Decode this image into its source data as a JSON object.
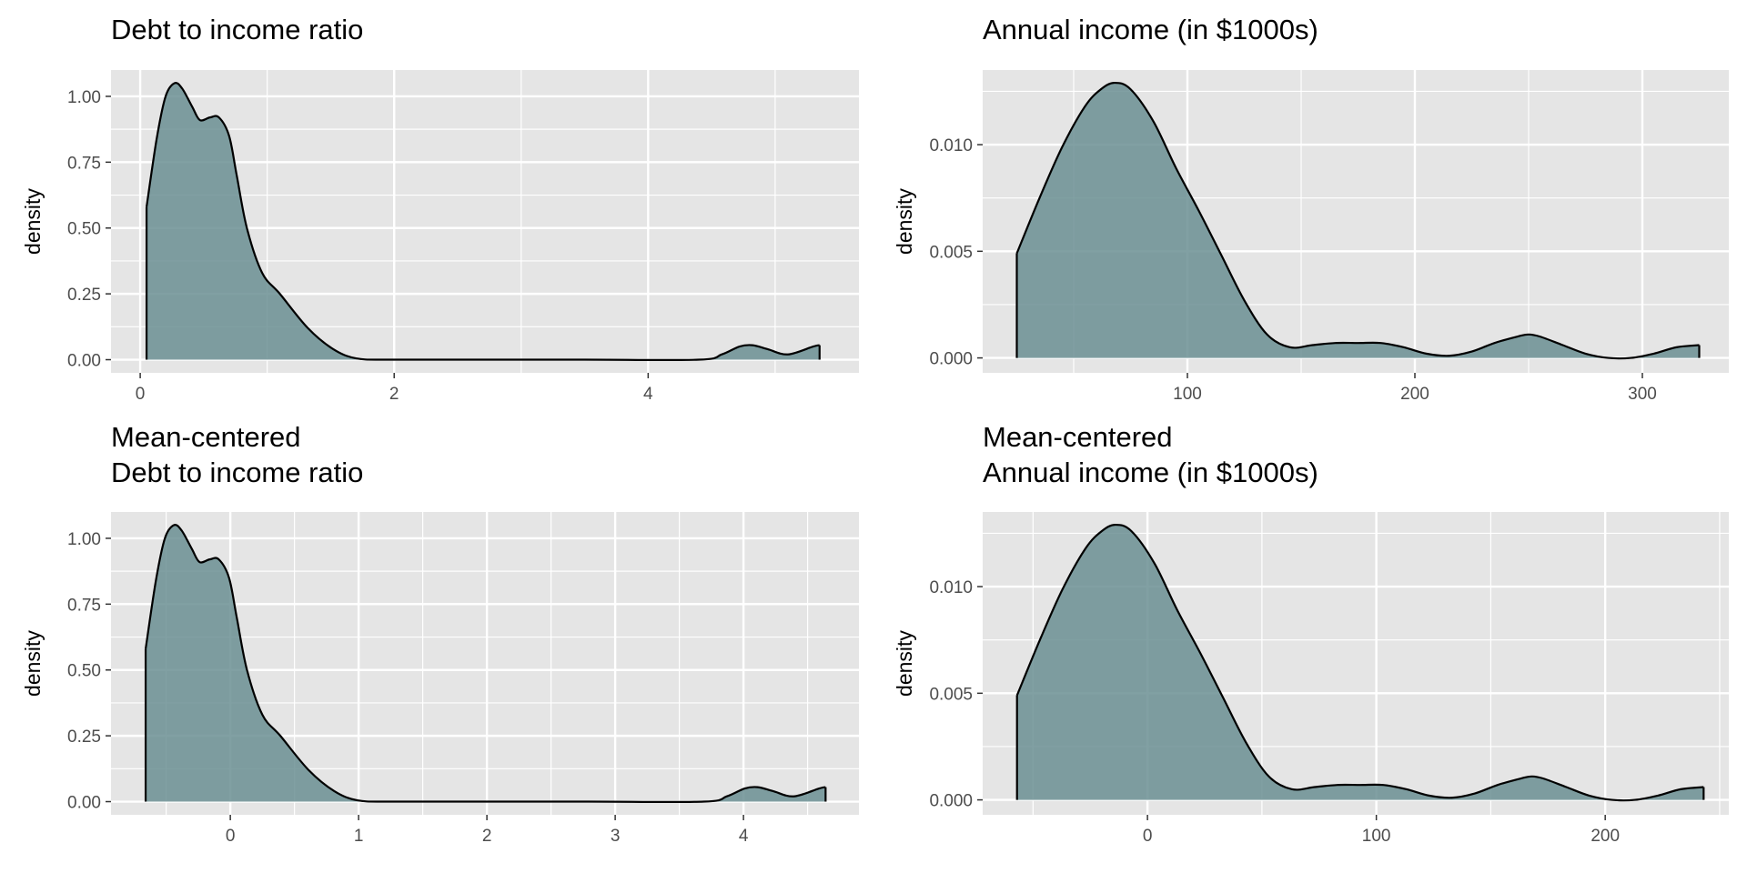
{
  "figure": {
    "background_color": "#ffffff",
    "panel_background_color": "#e5e5e5",
    "grid_color": "#ffffff",
    "fill_color": "#6b8f93",
    "line_color": "#000000"
  },
  "chart_data": [
    {
      "type": "area",
      "title": [
        "Debt to income ratio"
      ],
      "xlabel": "",
      "ylabel": "density",
      "xlim": [
        -0.23,
        5.66
      ],
      "ylim": [
        -0.05,
        1.1
      ],
      "xticks": [
        0,
        2,
        4
      ],
      "xtick_labels": [
        "0",
        "2",
        "4"
      ],
      "yticks": [
        0,
        0.25,
        0.5,
        0.75,
        1.0
      ],
      "ytick_labels": [
        "0.00",
        "0.25",
        "0.50",
        "0.75",
        "1.00"
      ],
      "grid": true,
      "x": [
        0.05,
        0.13,
        0.2,
        0.27,
        0.33,
        0.41,
        0.47,
        0.55,
        0.62,
        0.7,
        0.76,
        0.84,
        0.96,
        1.1,
        1.32,
        1.52,
        1.7,
        1.95,
        2.5,
        3.5,
        4.4,
        4.58,
        4.72,
        4.82,
        4.94,
        5.1,
        5.3,
        5.35
      ],
      "y": [
        0.58,
        0.84,
        1.0,
        1.05,
        1.03,
        0.96,
        0.91,
        0.92,
        0.92,
        0.85,
        0.7,
        0.5,
        0.33,
        0.25,
        0.12,
        0.04,
        0.005,
        0.0,
        0.0,
        0.0,
        0.0,
        0.02,
        0.05,
        0.055,
        0.04,
        0.02,
        0.05,
        0.055
      ]
    },
    {
      "type": "area",
      "title": [
        "Annual income (in $1000s)"
      ],
      "xlabel": "",
      "ylabel": "density",
      "xlim": [
        10,
        338
      ],
      "ylim": [
        -0.0007,
        0.0135
      ],
      "xticks": [
        100,
        200,
        300
      ],
      "xtick_labels": [
        "100",
        "200",
        "300"
      ],
      "yticks": [
        0,
        0.005,
        0.01
      ],
      "ytick_labels": [
        "0.000",
        "0.005",
        "0.010"
      ],
      "grid": true,
      "x": [
        25,
        35,
        45,
        55,
        62,
        68,
        75,
        85,
        95,
        105,
        115,
        125,
        135,
        145,
        155,
        165,
        175,
        185,
        195,
        205,
        215,
        225,
        235,
        245,
        250,
        255,
        265,
        275,
        285,
        295,
        305,
        315,
        325
      ],
      "y": [
        0.0049,
        0.0075,
        0.0099,
        0.0118,
        0.0126,
        0.0129,
        0.0126,
        0.0111,
        0.0089,
        0.0069,
        0.0048,
        0.0027,
        0.0011,
        0.0005,
        0.0006,
        0.0007,
        0.0007,
        0.0007,
        0.0005,
        0.0002,
        0.0001,
        0.0003,
        0.0007,
        0.001,
        0.0011,
        0.001,
        0.0006,
        0.0002,
        0.0,
        0.0,
        0.0002,
        0.0005,
        0.0006
      ]
    },
    {
      "type": "area",
      "title": [
        "Mean-centered",
        "Debt to income ratio"
      ],
      "xlabel": "",
      "ylabel": "density",
      "xlim": [
        -0.93,
        4.9
      ],
      "ylim": [
        -0.05,
        1.1
      ],
      "xticks": [
        0,
        1,
        2,
        3,
        4
      ],
      "xtick_labels": [
        "0",
        "1",
        "2",
        "3",
        "4"
      ],
      "yticks": [
        0,
        0.25,
        0.5,
        0.75,
        1.0
      ],
      "ytick_labels": [
        "0.00",
        "0.25",
        "0.50",
        "0.75",
        "1.00"
      ],
      "grid": true,
      "x": [
        -0.66,
        -0.58,
        -0.51,
        -0.44,
        -0.38,
        -0.3,
        -0.24,
        -0.16,
        -0.09,
        -0.01,
        0.05,
        0.13,
        0.25,
        0.39,
        0.61,
        0.81,
        0.99,
        1.24,
        1.79,
        2.79,
        3.69,
        3.87,
        4.01,
        4.11,
        4.23,
        4.39,
        4.59,
        4.64
      ],
      "y": [
        0.58,
        0.84,
        1.0,
        1.05,
        1.03,
        0.96,
        0.91,
        0.92,
        0.92,
        0.85,
        0.7,
        0.5,
        0.33,
        0.25,
        0.12,
        0.04,
        0.005,
        0.0,
        0.0,
        0.0,
        0.0,
        0.02,
        0.05,
        0.055,
        0.04,
        0.02,
        0.05,
        0.055
      ]
    },
    {
      "type": "area",
      "title": [
        "Mean-centered",
        "Annual income (in $1000s)"
      ],
      "xlabel": "",
      "ylabel": "density",
      "xlim": [
        -72,
        254
      ],
      "ylim": [
        -0.0007,
        0.0135
      ],
      "xticks": [
        0,
        100,
        200
      ],
      "xtick_labels": [
        "0",
        "100",
        "200"
      ],
      "yticks": [
        0,
        0.005,
        0.01
      ],
      "ytick_labels": [
        "0.000",
        "0.005",
        "0.010"
      ],
      "grid": true,
      "x": [
        -57,
        -47,
        -37,
        -27,
        -20,
        -14,
        -7,
        3,
        13,
        23,
        33,
        43,
        53,
        63,
        73,
        83,
        93,
        103,
        113,
        123,
        133,
        143,
        153,
        163,
        168,
        173,
        183,
        193,
        203,
        213,
        223,
        233,
        243
      ],
      "y": [
        0.0049,
        0.0075,
        0.0099,
        0.0118,
        0.0126,
        0.0129,
        0.0126,
        0.0111,
        0.0089,
        0.0069,
        0.0048,
        0.0027,
        0.0011,
        0.0005,
        0.0006,
        0.0007,
        0.0007,
        0.0007,
        0.0005,
        0.0002,
        0.0001,
        0.0003,
        0.0007,
        0.001,
        0.0011,
        0.001,
        0.0006,
        0.0002,
        0.0,
        0.0,
        0.0002,
        0.0005,
        0.0006
      ]
    }
  ]
}
